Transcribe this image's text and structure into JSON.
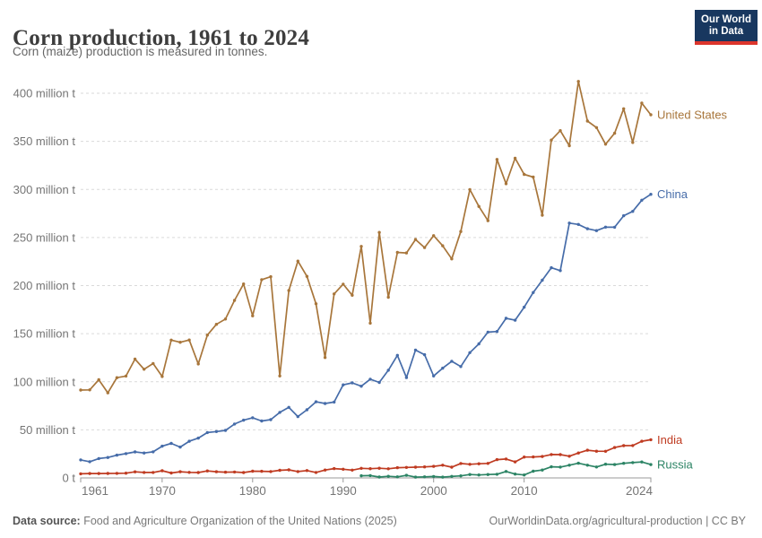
{
  "header": {
    "title": "Corn production, 1961 to 2024",
    "subtitle": "Corn (maize) production is measured in tonnes."
  },
  "logo": {
    "line1": "Our World",
    "line2": "in Data",
    "bg_color": "#18375F",
    "accent_color": "#DC352C"
  },
  "footer": {
    "source_label": "Data source:",
    "source_text": "Food and Agriculture Organization of the United Nations (2025)",
    "credit_text": "OurWorldinData.org/agricultural-production | CC BY"
  },
  "chart_data": {
    "type": "line",
    "title": "Corn production, 1961 to 2024",
    "xlabel": "",
    "ylabel": "",
    "unit": "tonnes",
    "xlim": [
      1961,
      2024
    ],
    "ylim": [
      0,
      400000000
    ],
    "ylim_million_t": [
      0,
      400
    ],
    "grid": "horizontal-dashed",
    "legend_position": "line-end-labels",
    "x_ticks": [
      1961,
      1970,
      1980,
      1990,
      2000,
      2010,
      2024
    ],
    "y_ticks_million_t": [
      0,
      50,
      100,
      150,
      200,
      250,
      300,
      350,
      400
    ],
    "y_tick_labels": [
      "0 t",
      "50 million t",
      "100 million t",
      "150 million t",
      "200 million t",
      "250 million t",
      "300 million t",
      "350 million t",
      "400 million t"
    ],
    "grid_color": "#dadada",
    "axis_color": "#999999",
    "tick_label_color": "#757575",
    "series": [
      {
        "name": "United States",
        "color": "#A8763B",
        "start_year": 1961,
        "values_million_t": [
          91.4,
          91.6,
          102.1,
          88.5,
          104.2,
          105.9,
          123.5,
          113.0,
          119.0,
          105.5,
          143.3,
          141.1,
          143.4,
          118.5,
          148.5,
          159.7,
          165.2,
          184.6,
          201.7,
          168.6,
          206.2,
          209.2,
          106.0,
          194.9,
          225.5,
          209.6,
          181.1,
          125.2,
          191.3,
          201.5,
          189.9,
          240.7,
          160.9,
          255.3,
          187.9,
          234.5,
          233.9,
          247.9,
          239.5,
          251.9,
          241.4,
          227.8,
          256.2,
          299.9,
          282.3,
          267.5,
          331.2,
          305.9,
          332.5,
          315.6,
          312.8,
          273.2,
          351.3,
          361.1,
          345.5,
          412.3,
          371.1,
          364.3,
          347.0,
          358.4,
          383.9,
          348.8,
          389.7,
          377.6
        ]
      },
      {
        "name": "China",
        "color": "#466CA9",
        "start_year": 1961,
        "values_million_t": [
          18.7,
          16.9,
          20.1,
          21.3,
          23.7,
          25.3,
          27.0,
          25.9,
          27.1,
          33.0,
          35.9,
          32.1,
          38.1,
          41.4,
          47.2,
          48.2,
          49.4,
          56.0,
          60.0,
          62.6,
          59.2,
          60.6,
          68.2,
          73.4,
          63.8,
          70.9,
          79.2,
          77.4,
          78.9,
          96.8,
          98.8,
          95.4,
          102.7,
          99.3,
          112.0,
          127.5,
          104.3,
          133.0,
          128.1,
          106.0,
          114.1,
          121.3,
          115.8,
          130.3,
          139.4,
          151.6,
          152.3,
          166.0,
          164.0,
          177.5,
          192.8,
          205.6,
          218.6,
          215.6,
          265.0,
          263.6,
          259.1,
          257.2,
          260.8,
          260.7,
          272.6,
          277.2,
          288.8,
          294.9
        ]
      },
      {
        "name": "India",
        "color": "#BF3B21",
        "start_year": 1961,
        "values_million_t": [
          4.3,
          4.6,
          4.6,
          4.7,
          4.8,
          4.9,
          6.3,
          5.7,
          5.7,
          7.5,
          5.1,
          6.4,
          5.8,
          5.6,
          7.3,
          6.4,
          6.0,
          6.2,
          5.6,
          7.0,
          6.9,
          6.6,
          7.9,
          8.4,
          6.6,
          7.6,
          5.7,
          8.2,
          9.7,
          9.0,
          8.1,
          10.0,
          9.6,
          10.1,
          9.5,
          10.6,
          10.9,
          11.2,
          11.5,
          12.0,
          13.2,
          11.2,
          15.0,
          14.2,
          14.7,
          15.1,
          19.0,
          19.7,
          16.7,
          21.7,
          21.8,
          22.3,
          24.3,
          24.2,
          22.6,
          25.9,
          28.8,
          27.8,
          27.7,
          31.6,
          33.6,
          33.7,
          38.1,
          39.7
        ]
      },
      {
        "name": "Russia",
        "color": "#2C8465",
        "start_year": 1992,
        "values_million_t": [
          2.2,
          2.4,
          0.9,
          1.7,
          1.1,
          2.7,
          0.8,
          1.1,
          1.5,
          0.8,
          1.6,
          2.1,
          3.5,
          3.1,
          3.5,
          3.8,
          6.7,
          4.0,
          3.1,
          7.0,
          8.2,
          11.6,
          11.3,
          13.2,
          15.3,
          13.2,
          11.4,
          14.3,
          13.9,
          15.2,
          15.9,
          16.6,
          13.9
        ]
      }
    ]
  }
}
